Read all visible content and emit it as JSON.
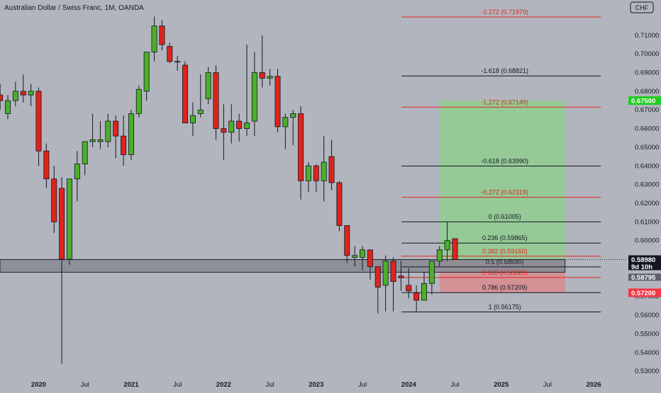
{
  "header": {
    "symbol_title": "Australian Dollar / Swiss Franc, 1M, OANDA"
  },
  "currency_badge": "CHF",
  "colors": {
    "background": "#b2b5be",
    "bull": "#4caf2a",
    "bear": "#e0231c",
    "fib_red": "#e0231c",
    "fib_black": "#131722",
    "target_zone": "#8fce8f",
    "stop_zone": "#d88b8e",
    "support_zone": "#8a8d96",
    "current_price_bg": "#131722",
    "target_label_bg": "#1fcc1f",
    "stop_label_bg": "#f23645"
  },
  "chart_data": {
    "type": "candlestick",
    "title": "Australian Dollar / Swiss Franc, 1M, OANDA",
    "y_axis": {
      "range": [
        0.525,
        0.7225
      ],
      "ticks": [
        "0.71000",
        "0.70000",
        "0.69000",
        "0.68000",
        "0.67000",
        "0.66000",
        "0.65000",
        "0.64000",
        "0.63000",
        "0.62000",
        "0.61000",
        "0.60000",
        "0.59000",
        "0.58000",
        "0.57000",
        "0.56000",
        "0.55000",
        "0.54000",
        "0.53000"
      ]
    },
    "x_axis": {
      "ticks": [
        {
          "label": "2020",
          "bold": true,
          "month": 36
        },
        {
          "label": "Jul",
          "bold": false,
          "month": 42
        },
        {
          "label": "2021",
          "bold": true,
          "month": 48
        },
        {
          "label": "Jul",
          "bold": false,
          "month": 54
        },
        {
          "label": "2022",
          "bold": true,
          "month": 60
        },
        {
          "label": "Jul",
          "bold": false,
          "month": 66
        },
        {
          "label": "2023",
          "bold": true,
          "month": 72
        },
        {
          "label": "Jul",
          "bold": false,
          "month": 78
        },
        {
          "label": "2024",
          "bold": true,
          "month": 84
        },
        {
          "label": "Jul",
          "bold": false,
          "month": 90
        },
        {
          "label": "2025",
          "bold": true,
          "month": 96
        },
        {
          "label": "Jul",
          "bold": false,
          "month": 102
        },
        {
          "label": "2026",
          "bold": true,
          "month": 108
        },
        {
          "label": "Jul",
          "bold": false,
          "month": 114
        }
      ]
    },
    "candles": [
      {
        "m": 31,
        "o": 0.678,
        "h": 0.684,
        "l": 0.67,
        "c": 0.675
      },
      {
        "m": 32,
        "o": 0.668,
        "h": 0.678,
        "l": 0.665,
        "c": 0.675
      },
      {
        "m": 33,
        "o": 0.675,
        "h": 0.685,
        "l": 0.672,
        "c": 0.68
      },
      {
        "m": 34,
        "o": 0.68,
        "h": 0.689,
        "l": 0.674,
        "c": 0.678
      },
      {
        "m": 35,
        "o": 0.678,
        "h": 0.684,
        "l": 0.672,
        "c": 0.68
      },
      {
        "m": 36,
        "o": 0.68,
        "h": 0.682,
        "l": 0.64,
        "c": 0.648
      },
      {
        "m": 37,
        "o": 0.648,
        "h": 0.652,
        "l": 0.628,
        "c": 0.633
      },
      {
        "m": 38,
        "o": 0.633,
        "h": 0.64,
        "l": 0.604,
        "c": 0.61
      },
      {
        "m": 39,
        "o": 0.628,
        "h": 0.634,
        "l": 0.534,
        "c": 0.59
      },
      {
        "m": 40,
        "o": 0.59,
        "h": 0.632,
        "l": 0.587,
        "c": 0.633
      },
      {
        "m": 41,
        "o": 0.633,
        "h": 0.648,
        "l": 0.621,
        "c": 0.641
      },
      {
        "m": 42,
        "o": 0.641,
        "h": 0.652,
        "l": 0.635,
        "c": 0.653
      },
      {
        "m": 43,
        "o": 0.653,
        "h": 0.668,
        "l": 0.65,
        "c": 0.654
      },
      {
        "m": 44,
        "o": 0.653,
        "h": 0.664,
        "l": 0.649,
        "c": 0.654
      },
      {
        "m": 45,
        "o": 0.653,
        "h": 0.668,
        "l": 0.65,
        "c": 0.664
      },
      {
        "m": 46,
        "o": 0.664,
        "h": 0.667,
        "l": 0.644,
        "c": 0.656
      },
      {
        "m": 47,
        "o": 0.656,
        "h": 0.667,
        "l": 0.64,
        "c": 0.646
      },
      {
        "m": 48,
        "o": 0.646,
        "h": 0.67,
        "l": 0.643,
        "c": 0.668
      },
      {
        "m": 49,
        "o": 0.668,
        "h": 0.683,
        "l": 0.666,
        "c": 0.681
      },
      {
        "m": 50,
        "o": 0.68,
        "h": 0.7,
        "l": 0.675,
        "c": 0.701
      },
      {
        "m": 51,
        "o": 0.701,
        "h": 0.72,
        "l": 0.696,
        "c": 0.715
      },
      {
        "m": 52,
        "o": 0.715,
        "h": 0.718,
        "l": 0.702,
        "c": 0.705
      },
      {
        "m": 53,
        "o": 0.704,
        "h": 0.706,
        "l": 0.695,
        "c": 0.696
      },
      {
        "m": 54,
        "o": 0.696,
        "h": 0.699,
        "l": 0.691,
        "c": 0.696
      },
      {
        "m": 55,
        "o": 0.694,
        "h": 0.696,
        "l": 0.664,
        "c": 0.663
      },
      {
        "m": 56,
        "o": 0.663,
        "h": 0.674,
        "l": 0.656,
        "c": 0.667
      },
      {
        "m": 57,
        "o": 0.668,
        "h": 0.689,
        "l": 0.666,
        "c": 0.67
      },
      {
        "m": 58,
        "o": 0.676,
        "h": 0.693,
        "l": 0.673,
        "c": 0.69
      },
      {
        "m": 59,
        "o": 0.69,
        "h": 0.694,
        "l": 0.654,
        "c": 0.66
      },
      {
        "m": 60,
        "o": 0.66,
        "h": 0.673,
        "l": 0.643,
        "c": 0.658
      },
      {
        "m": 61,
        "o": 0.658,
        "h": 0.673,
        "l": 0.652,
        "c": 0.664
      },
      {
        "m": 62,
        "o": 0.664,
        "h": 0.668,
        "l": 0.653,
        "c": 0.66
      },
      {
        "m": 63,
        "o": 0.66,
        "h": 0.705,
        "l": 0.656,
        "c": 0.663
      },
      {
        "m": 64,
        "o": 0.664,
        "h": 0.701,
        "l": 0.656,
        "c": 0.69
      },
      {
        "m": 65,
        "o": 0.69,
        "h": 0.71,
        "l": 0.682,
        "c": 0.687
      },
      {
        "m": 66,
        "o": 0.687,
        "h": 0.692,
        "l": 0.683,
        "c": 0.688
      },
      {
        "m": 67,
        "o": 0.688,
        "h": 0.692,
        "l": 0.658,
        "c": 0.661
      },
      {
        "m": 68,
        "o": 0.661,
        "h": 0.668,
        "l": 0.649,
        "c": 0.666
      },
      {
        "m": 69,
        "o": 0.666,
        "h": 0.67,
        "l": 0.651,
        "c": 0.668
      },
      {
        "m": 70,
        "o": 0.668,
        "h": 0.672,
        "l": 0.622,
        "c": 0.632
      },
      {
        "m": 71,
        "o": 0.632,
        "h": 0.642,
        "l": 0.626,
        "c": 0.64
      },
      {
        "m": 72,
        "o": 0.64,
        "h": 0.641,
        "l": 0.626,
        "c": 0.632
      },
      {
        "m": 73,
        "o": 0.632,
        "h": 0.656,
        "l": 0.621,
        "c": 0.642
      },
      {
        "m": 74,
        "o": 0.645,
        "h": 0.654,
        "l": 0.627,
        "c": 0.631
      },
      {
        "m": 75,
        "o": 0.631,
        "h": 0.632,
        "l": 0.605,
        "c": 0.608
      },
      {
        "m": 76,
        "o": 0.608,
        "h": 0.608,
        "l": 0.588,
        "c": 0.592
      },
      {
        "m": 77,
        "o": 0.591,
        "h": 0.597,
        "l": 0.586,
        "c": 0.592
      },
      {
        "m": 78,
        "o": 0.591,
        "h": 0.597,
        "l": 0.584,
        "c": 0.595
      },
      {
        "m": 79,
        "o": 0.595,
        "h": 0.595,
        "l": 0.579,
        "c": 0.586
      },
      {
        "m": 80,
        "o": 0.586,
        "h": 0.586,
        "l": 0.561,
        "c": 0.575
      },
      {
        "m": 81,
        "o": 0.576,
        "h": 0.592,
        "l": 0.562,
        "c": 0.589
      },
      {
        "m": 82,
        "o": 0.589,
        "h": 0.591,
        "l": 0.562,
        "c": 0.578
      },
      {
        "m": 83,
        "o": 0.581,
        "h": 0.589,
        "l": 0.573,
        "c": 0.58
      },
      {
        "m": 84,
        "o": 0.576,
        "h": 0.585,
        "l": 0.569,
        "c": 0.573
      },
      {
        "m": 85,
        "o": 0.572,
        "h": 0.576,
        "l": 0.562,
        "c": 0.568
      },
      {
        "m": 86,
        "o": 0.568,
        "h": 0.583,
        "l": 0.568,
        "c": 0.577
      },
      {
        "m": 87,
        "o": 0.577,
        "h": 0.588,
        "l": 0.571,
        "c": 0.589
      },
      {
        "m": 88,
        "o": 0.589,
        "h": 0.597,
        "l": 0.586,
        "c": 0.595
      },
      {
        "m": 89,
        "o": 0.595,
        "h": 0.61,
        "l": 0.589,
        "c": 0.6
      },
      {
        "m": 90,
        "o": 0.601,
        "h": 0.601,
        "l": 0.59,
        "c": 0.5898
      }
    ],
    "fib_levels": [
      {
        "ratio": "-2.272",
        "price": 0.71979,
        "label": "-2.272 (0.71979)",
        "color": "red"
      },
      {
        "ratio": "-1.618",
        "price": 0.68821,
        "label": "-1.618 (0.68821)",
        "color": "black"
      },
      {
        "ratio": "-1.272",
        "price": 0.67149,
        "label": "-1.272 (0.67149)",
        "color": "red"
      },
      {
        "ratio": "-0.618",
        "price": 0.6399,
        "label": "-0.618 (0.63990)",
        "color": "black"
      },
      {
        "ratio": "-0.272",
        "price": 0.62319,
        "label": "-0.272 (0.62319)",
        "color": "red"
      },
      {
        "ratio": "0",
        "price": 0.61005,
        "label": "0 (0.61005)",
        "color": "black"
      },
      {
        "ratio": "0.236",
        "price": 0.59865,
        "label": "0.236 (0.59865)",
        "color": "black"
      },
      {
        "ratio": "0.382",
        "price": 0.5916,
        "label": "0.382 (0.59160)",
        "color": "red"
      },
      {
        "ratio": "0.5",
        "price": 0.5859,
        "label": "0.5 (0.58590)",
        "color": "black"
      },
      {
        "ratio": "0.618",
        "price": 0.5802,
        "label": "0.618 (0.58020)",
        "color": "red"
      },
      {
        "ratio": "0.786",
        "price": 0.57209,
        "label": "0.786 (0.57209)",
        "color": "black"
      },
      {
        "ratio": "1",
        "price": 0.56175,
        "label": "1 (0.56175)",
        "color": "black"
      }
    ],
    "fib_start_month": 84,
    "fib_end_month": 108,
    "position": {
      "entry": 0.5898,
      "target": 0.675,
      "stop": 0.572,
      "start_month": 88,
      "end_month": 104
    },
    "support_zone": {
      "top": 0.5898,
      "bottom": 0.583,
      "start_month": 31,
      "end_month": 104
    },
    "price_labels": [
      {
        "text": "0.67500",
        "price": 0.675,
        "type": "target"
      },
      {
        "text": "0.58980",
        "price": 0.5898,
        "type": "current"
      },
      {
        "text": "9d 10h",
        "price": 0.5898,
        "type": "countdown"
      },
      {
        "text": "0.58795",
        "price": 0.58795,
        "type": "zone"
      },
      {
        "text": "0.57200",
        "price": 0.572,
        "type": "stop"
      }
    ]
  }
}
